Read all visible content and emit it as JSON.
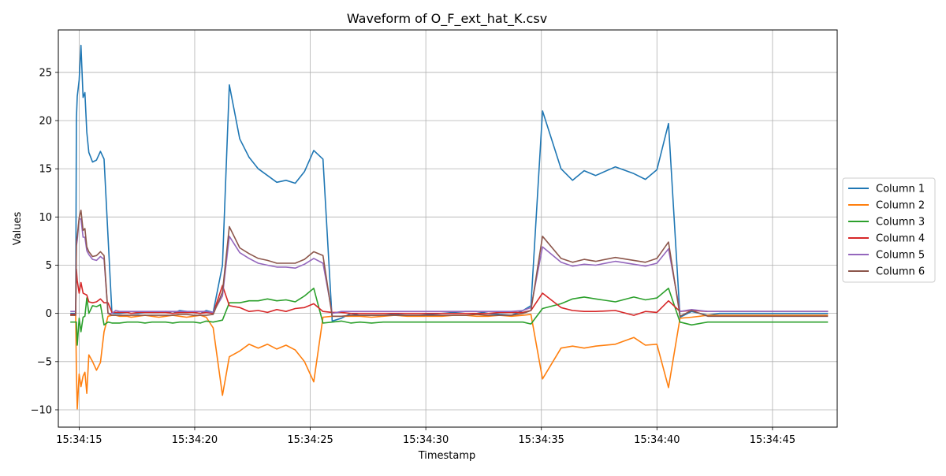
{
  "chart_data": {
    "type": "line",
    "title": "Waveform of O_F_ext_hat_K.csv",
    "xlabel": "Timestamp",
    "ylabel": "Values",
    "xlim": [
      -0.9,
      32.8
    ],
    "ylim": [
      -11.8,
      29.4
    ],
    "x_unit": "seconds",
    "grid": true,
    "legend_position": "center-right",
    "x_ticks": [
      {
        "value": 0,
        "label": "15:34:15"
      },
      {
        "value": 5,
        "label": "15:34:20"
      },
      {
        "value": 10,
        "label": "15:34:25"
      },
      {
        "value": 15,
        "label": "15:34:30"
      },
      {
        "value": 20,
        "label": "15:34:35"
      },
      {
        "value": 25,
        "label": "15:34:40"
      },
      {
        "value": 30,
        "label": "15:34:45"
      }
    ],
    "y_ticks": [
      {
        "value": -10,
        "label": "−10"
      },
      {
        "value": -5,
        "label": "−5"
      },
      {
        "value": 0,
        "label": "0"
      },
      {
        "value": 5,
        "label": "5"
      },
      {
        "value": 10,
        "label": "10"
      },
      {
        "value": 15,
        "label": "15"
      },
      {
        "value": 20,
        "label": "20"
      },
      {
        "value": 25,
        "label": "25"
      }
    ],
    "x": [
      -0.38,
      -0.15,
      -0.12,
      -0.08,
      0.0,
      0.08,
      0.17,
      0.25,
      0.33,
      0.42,
      0.58,
      0.75,
      0.92,
      1.08,
      1.25,
      1.42,
      1.58,
      1.75,
      2.08,
      2.25,
      2.55,
      2.85,
      3.15,
      3.45,
      3.75,
      4.05,
      4.35,
      4.65,
      4.95,
      5.25,
      5.5,
      5.8,
      6.2,
      6.5,
      6.95,
      7.35,
      7.75,
      8.15,
      8.55,
      8.95,
      9.35,
      9.75,
      10.15,
      10.55,
      10.95,
      11.35,
      11.75,
      12.15,
      12.65,
      13.15,
      13.65,
      14.2,
      14.7,
      15.2,
      15.7,
      16.2,
      16.7,
      17.2,
      17.7,
      18.2,
      18.7,
      19.2,
      19.55,
      20.05,
      20.85,
      21.35,
      21.85,
      22.35,
      23.2,
      24.0,
      24.5,
      25.0,
      25.5,
      26.0,
      26.5,
      27.2,
      27.7,
      28.2,
      28.7,
      29.2,
      29.55,
      30.05,
      30.8,
      31.7,
      32.4
    ],
    "series": [
      {
        "name": "Column 1",
        "color": "#1f77b4",
        "values": [
          0.0,
          0.0,
          20.2,
          22.5,
          24.2,
          27.8,
          22.4,
          22.9,
          18.8,
          16.7,
          15.7,
          15.9,
          16.8,
          16.0,
          8.0,
          0.0,
          0.0,
          0.0,
          0.1,
          0.0,
          0.0,
          0.1,
          0.1,
          0.1,
          0.2,
          0.0,
          0.3,
          0.2,
          0.1,
          0.0,
          0.3,
          0.1,
          5.0,
          23.7,
          18.1,
          16.2,
          15.0,
          14.3,
          13.6,
          13.8,
          13.5,
          14.7,
          16.9,
          16.0,
          -0.8,
          -0.5,
          0.0,
          -0.2,
          -0.2,
          -0.2,
          -0.1,
          -0.2,
          -0.2,
          -0.1,
          0.0,
          0.1,
          0.2,
          0.2,
          0.0,
          -0.1,
          -0.2,
          0.3,
          0.8,
          21.0,
          15.0,
          13.8,
          14.8,
          14.3,
          15.2,
          14.5,
          13.9,
          14.9,
          19.7,
          -0.4,
          0.2,
          -0.2,
          0.0,
          0.0,
          0.0,
          0.0,
          0.0,
          0.0,
          0.0,
          0.0,
          0.0
        ]
      },
      {
        "name": "Column 2",
        "color": "#ff7f0e",
        "values": [
          -0.2,
          -0.2,
          -6.0,
          -9.9,
          -6.3,
          -7.6,
          -6.5,
          -6.1,
          -8.3,
          -4.3,
          -5.0,
          -5.9,
          -5.1,
          -1.9,
          -0.3,
          -0.2,
          -0.2,
          -0.3,
          -0.3,
          -0.4,
          -0.3,
          -0.2,
          -0.3,
          -0.4,
          -0.3,
          -0.2,
          -0.3,
          -0.4,
          -0.3,
          -0.2,
          -0.4,
          -1.5,
          -8.5,
          -4.5,
          -3.9,
          -3.2,
          -3.6,
          -3.2,
          -3.7,
          -3.3,
          -3.8,
          -5.0,
          -7.1,
          -0.4,
          -0.3,
          -0.3,
          -0.3,
          -0.3,
          -0.4,
          -0.3,
          -0.2,
          -0.3,
          -0.3,
          -0.3,
          -0.3,
          -0.2,
          -0.2,
          -0.3,
          -0.3,
          -0.2,
          -0.3,
          -0.2,
          -0.1,
          -6.8,
          -3.6,
          -3.4,
          -3.6,
          -3.4,
          -3.2,
          -2.5,
          -3.3,
          -3.2,
          -7.7,
          -0.5,
          -0.4,
          -0.2,
          -0.2,
          -0.2,
          -0.2,
          -0.2,
          -0.2,
          -0.2,
          -0.2,
          -0.2,
          -0.2
        ]
      },
      {
        "name": "Column 3",
        "color": "#2ca02c",
        "values": [
          -0.9,
          -0.9,
          -0.9,
          -3.3,
          -0.5,
          -1.9,
          -0.4,
          -0.3,
          1.6,
          0.0,
          0.8,
          0.7,
          0.9,
          -1.2,
          -0.9,
          -1.0,
          -1.0,
          -1.0,
          -0.9,
          -0.9,
          -0.9,
          -1.0,
          -0.9,
          -0.9,
          -0.9,
          -1.0,
          -0.9,
          -0.9,
          -0.9,
          -1.0,
          -0.8,
          -0.9,
          -0.7,
          1.1,
          1.1,
          1.3,
          1.3,
          1.5,
          1.3,
          1.4,
          1.2,
          1.8,
          2.6,
          -1.0,
          -0.9,
          -0.8,
          -1.0,
          -0.9,
          -1.0,
          -0.9,
          -0.9,
          -0.9,
          -0.9,
          -0.9,
          -0.9,
          -0.9,
          -0.9,
          -0.9,
          -0.9,
          -0.9,
          -0.9,
          -0.9,
          -1.1,
          0.5,
          1.0,
          1.5,
          1.7,
          1.5,
          1.2,
          1.7,
          1.4,
          1.6,
          2.6,
          -0.9,
          -1.2,
          -0.9,
          -0.9,
          -0.9,
          -0.9,
          -0.9,
          -0.9,
          -0.9,
          -0.9,
          -0.9,
          -0.9
        ]
      },
      {
        "name": "Column 4",
        "color": "#d62728",
        "values": [
          -0.1,
          -0.1,
          4.6,
          3.4,
          2.1,
          3.2,
          2.1,
          2.0,
          1.9,
          1.2,
          1.1,
          1.2,
          1.5,
          1.1,
          1.1,
          0.1,
          0.1,
          0.1,
          0.1,
          0.0,
          0.1,
          0.1,
          0.1,
          0.1,
          0.1,
          0.0,
          0.1,
          0.1,
          0.1,
          0.0,
          0.1,
          0.0,
          2.9,
          0.8,
          0.6,
          0.2,
          0.3,
          0.1,
          0.4,
          0.2,
          0.5,
          0.6,
          1.0,
          0.2,
          0.1,
          0.1,
          0.0,
          0.0,
          0.0,
          0.0,
          0.0,
          0.0,
          0.0,
          0.0,
          0.0,
          0.0,
          0.0,
          0.0,
          0.0,
          0.1,
          0.1,
          0.1,
          0.3,
          2.1,
          0.6,
          0.3,
          0.2,
          0.2,
          0.3,
          -0.2,
          0.2,
          0.1,
          1.3,
          0.2,
          0.3,
          0.2,
          0.2,
          0.2,
          0.2,
          0.2,
          0.2,
          0.2,
          0.2,
          0.2,
          0.2
        ]
      },
      {
        "name": "Column 5",
        "color": "#9467bd",
        "values": [
          0.2,
          0.2,
          7.0,
          7.6,
          9.8,
          9.8,
          7.9,
          7.9,
          6.5,
          6.1,
          5.6,
          5.5,
          5.9,
          5.6,
          0.0,
          0.0,
          0.3,
          0.2,
          0.2,
          0.2,
          0.2,
          0.2,
          0.2,
          0.2,
          0.2,
          0.2,
          0.2,
          0.2,
          0.2,
          0.2,
          0.2,
          0.1,
          1.8,
          8.0,
          6.3,
          5.7,
          5.2,
          5.0,
          4.8,
          4.8,
          4.7,
          5.1,
          5.7,
          5.2,
          0.0,
          0.2,
          0.2,
          0.2,
          0.2,
          0.2,
          0.2,
          0.2,
          0.2,
          0.2,
          0.2,
          0.2,
          0.2,
          0.2,
          0.2,
          0.2,
          0.2,
          0.3,
          0.6,
          6.9,
          5.3,
          4.9,
          5.1,
          5.0,
          5.4,
          5.1,
          4.9,
          5.2,
          6.7,
          0.2,
          0.4,
          0.2,
          0.2,
          0.2,
          0.2,
          0.2,
          0.2,
          0.2,
          0.2,
          0.2,
          0.2
        ]
      },
      {
        "name": "Column 6",
        "color": "#8c564b",
        "values": [
          -0.2,
          -0.2,
          7.5,
          8.0,
          9.9,
          10.7,
          8.6,
          8.8,
          6.9,
          6.4,
          5.9,
          6.0,
          6.4,
          6.0,
          0.0,
          -0.2,
          -0.2,
          -0.2,
          -0.2,
          -0.2,
          -0.2,
          -0.2,
          -0.2,
          -0.2,
          -0.2,
          -0.2,
          -0.1,
          -0.1,
          -0.2,
          -0.2,
          -0.2,
          -0.1,
          2.2,
          9.0,
          6.8,
          6.2,
          5.7,
          5.5,
          5.2,
          5.2,
          5.2,
          5.6,
          6.4,
          6.0,
          -0.3,
          -0.3,
          -0.2,
          -0.2,
          -0.2,
          -0.2,
          -0.2,
          -0.2,
          -0.2,
          -0.2,
          -0.2,
          -0.2,
          -0.2,
          -0.1,
          -0.2,
          -0.2,
          -0.2,
          0.0,
          0.3,
          8.0,
          5.7,
          5.3,
          5.6,
          5.4,
          5.8,
          5.5,
          5.3,
          5.7,
          7.4,
          -0.3,
          0.3,
          -0.3,
          -0.3,
          -0.3,
          -0.3,
          -0.3,
          -0.3,
          -0.3,
          -0.3,
          -0.3,
          -0.3
        ]
      }
    ]
  }
}
